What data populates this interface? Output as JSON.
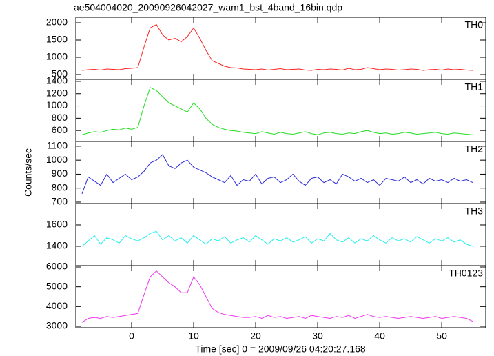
{
  "chart_data": {
    "type": "line",
    "title": "ae504004020_20090926042027_wam1_bst_4band_16bin.qdp",
    "xlabel": "Time [sec] 0 = 2009/09/26 04:20:27.168",
    "ylabel": "Counts/sec",
    "xlim": [
      -9,
      57.1
    ],
    "xticks": [
      0,
      10,
      20,
      30,
      40,
      50
    ],
    "x": [
      -8,
      -7,
      -6,
      -5,
      -4,
      -3,
      -2,
      -1,
      0,
      1,
      2,
      3,
      4,
      5,
      6,
      7,
      8,
      9,
      10,
      11,
      12,
      13,
      14,
      15,
      16,
      17,
      18,
      19,
      20,
      21,
      22,
      23,
      24,
      25,
      26,
      27,
      28,
      29,
      30,
      31,
      32,
      33,
      34,
      35,
      36,
      37,
      38,
      39,
      40,
      41,
      42,
      43,
      44,
      45,
      46,
      47,
      48,
      49,
      50,
      51,
      52,
      53,
      54,
      55
    ],
    "panels": [
      {
        "name": "TH0",
        "color": "#ff2020",
        "ylim": [
          360,
          2160
        ],
        "yticks": [
          500,
          1000,
          1500,
          2000
        ],
        "values": [
          620,
          640,
          650,
          630,
          660,
          650,
          640,
          670,
          680,
          700,
          1300,
          1850,
          1950,
          1650,
          1500,
          1550,
          1450,
          1600,
          1850,
          1550,
          1200,
          900,
          820,
          740,
          700,
          690,
          660,
          650,
          640,
          660,
          630,
          650,
          670,
          640,
          650,
          660,
          630,
          620,
          650,
          640,
          660,
          650,
          630,
          680,
          640,
          650,
          700,
          670,
          640,
          660,
          650,
          630,
          640,
          660,
          650,
          620,
          640,
          650,
          630,
          660,
          640,
          650,
          630,
          620
        ]
      },
      {
        "name": "TH1",
        "color": "#22dd22",
        "ylim": [
          422,
          1433
        ],
        "yticks": [
          600,
          800,
          1000,
          1200,
          1400
        ],
        "values": [
          530,
          560,
          580,
          570,
          600,
          620,
          610,
          640,
          620,
          650,
          1000,
          1300,
          1250,
          1150,
          1050,
          1000,
          950,
          900,
          1050,
          950,
          800,
          700,
          650,
          620,
          600,
          590,
          570,
          560,
          550,
          580,
          560,
          540,
          570,
          550,
          540,
          560,
          580,
          550,
          530,
          560,
          570,
          550,
          540,
          560,
          550,
          580,
          600,
          570,
          550,
          560,
          540,
          550,
          570,
          560,
          540,
          550,
          560,
          570,
          550,
          540,
          560,
          550,
          540,
          530
        ]
      },
      {
        "name": "TH2",
        "color": "#2a2ad8",
        "ylim": [
          690,
          1134
        ],
        "yticks": [
          700,
          800,
          900,
          1000,
          1100
        ],
        "values": [
          760,
          880,
          850,
          820,
          900,
          840,
          870,
          900,
          860,
          880,
          920,
          980,
          1000,
          1040,
          960,
          940,
          980,
          1000,
          950,
          930,
          910,
          880,
          860,
          840,
          890,
          820,
          860,
          850,
          900,
          830,
          870,
          880,
          840,
          860,
          900,
          850,
          820,
          870,
          880,
          840,
          860,
          830,
          900,
          880,
          850,
          870,
          840,
          860,
          820,
          870,
          860,
          850,
          880,
          840,
          860,
          830,
          870,
          850,
          860,
          840,
          870,
          850,
          860,
          840
        ]
      },
      {
        "name": "TH3",
        "color": "#22eeee",
        "ylim": [
          1219,
          1800
        ],
        "yticks": [
          1400,
          1600
        ],
        "values": [
          1400,
          1450,
          1500,
          1420,
          1480,
          1460,
          1430,
          1500,
          1470,
          1450,
          1480,
          1520,
          1540,
          1460,
          1500,
          1450,
          1480,
          1430,
          1500,
          1460,
          1420,
          1470,
          1450,
          1490,
          1430,
          1460,
          1480,
          1440,
          1500,
          1460,
          1420,
          1470,
          1450,
          1480,
          1440,
          1460,
          1490,
          1430,
          1470,
          1450,
          1520,
          1460,
          1440,
          1480,
          1430,
          1470,
          1450,
          1500,
          1460,
          1430,
          1480,
          1450,
          1470,
          1440,
          1490,
          1460,
          1430,
          1470,
          1450,
          1480,
          1440,
          1460,
          1420,
          1400
        ]
      },
      {
        "name": "TH0123",
        "color": "#ee33ee",
        "ylim": [
          2930,
          6070
        ],
        "yticks": [
          3000,
          4000,
          5000,
          6000
        ],
        "values": [
          3200,
          3400,
          3450,
          3400,
          3500,
          3450,
          3500,
          3550,
          3600,
          3650,
          4600,
          5500,
          5800,
          5500,
          5200,
          5000,
          4700,
          4700,
          5500,
          5100,
          4500,
          3900,
          3700,
          3600,
          3550,
          3500,
          3450,
          3450,
          3500,
          3400,
          3550,
          3450,
          3500,
          3400,
          3450,
          3500,
          3400,
          3550,
          3500,
          3450,
          3400,
          3500,
          3450,
          3550,
          3400,
          3500,
          3600,
          3500,
          3450,
          3500,
          3450,
          3400,
          3450,
          3500,
          3450,
          3400,
          3450,
          3500,
          3400,
          3450,
          3500,
          3450,
          3400,
          3250
        ]
      }
    ]
  }
}
